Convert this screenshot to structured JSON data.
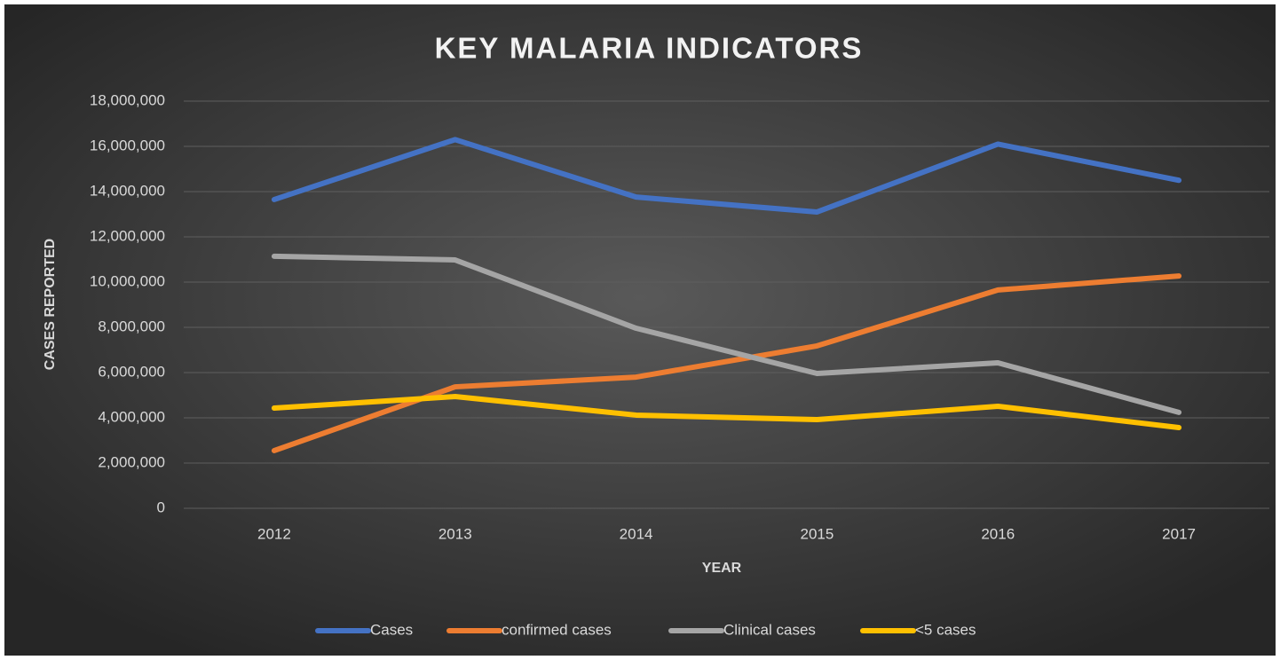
{
  "chart_data": {
    "type": "line",
    "title": "KEY MALARIA INDICATORS",
    "x_label": "YEAR",
    "y_label": "CASES REPORTED",
    "categories": [
      "2012",
      "2013",
      "2014",
      "2015",
      "2016",
      "2017"
    ],
    "series": [
      {
        "name": "Cases",
        "color": "#4472c4",
        "values": [
          13650000,
          16300000,
          13760000,
          13100000,
          16100000,
          14500000
        ]
      },
      {
        "name": "confirmed cases",
        "color": "#ed7d31",
        "values": [
          2550000,
          5370000,
          5800000,
          7180000,
          9650000,
          10270000
        ]
      },
      {
        "name": "Clinical cases",
        "color": "#a5a5a5",
        "values": [
          11140000,
          10980000,
          7960000,
          5960000,
          6430000,
          4240000
        ]
      },
      {
        "name": "<5 cases",
        "color": "#ffc000",
        "values": [
          4430000,
          4940000,
          4120000,
          3920000,
          4510000,
          3570000
        ]
      }
    ],
    "ylim": [
      0,
      18000000
    ],
    "yticks": [
      0,
      {
        "value": 2000000,
        "label": "2,000,000"
      },
      {
        "value": 4000000,
        "label": "4,000,000"
      },
      {
        "value": 6000000,
        "label": "6,000,000"
      },
      {
        "value": 8000000,
        "label": "8,000,000"
      },
      {
        "value": 10000000,
        "label": "10,000,000"
      },
      {
        "value": 12000000,
        "label": "12,000,000"
      },
      {
        "value": 14000000,
        "label": "14,000,000"
      },
      {
        "value": 16000000,
        "label": "16,000,000"
      },
      {
        "value": 18000000,
        "label": "18,000,000"
      }
    ],
    "grid": true,
    "legend": "bottom"
  }
}
